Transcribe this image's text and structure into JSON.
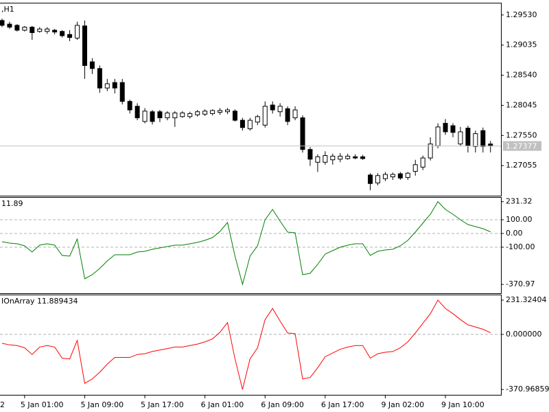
{
  "chart_data": [
    {
      "type": "candlestick",
      "title": ",H1",
      "clipped_x_label": "2",
      "categories": [
        null,
        null,
        null,
        "5 Jan 01:00",
        null,
        null,
        null,
        null,
        null,
        null,
        null,
        "5 Jan 09:00",
        null,
        null,
        null,
        null,
        null,
        null,
        null,
        "5 Jan 17:00",
        null,
        null,
        null,
        null,
        null,
        null,
        null,
        "6 Jan 01:00",
        null,
        null,
        null,
        null,
        null,
        null,
        null,
        "6 Jan 09:00",
        null,
        null,
        null,
        null,
        null,
        null,
        null,
        "6 Jan 17:00",
        null,
        null,
        null,
        null,
        null,
        null,
        null,
        "9 Jan 02:00",
        null,
        null,
        null,
        null,
        null,
        null,
        null,
        "9 Jan 10:00",
        null,
        null,
        null,
        null,
        null,
        null
      ],
      "ohlc": [
        [
          1.2944,
          1.2947,
          1.2933,
          1.2936
        ],
        [
          1.2938,
          1.2942,
          1.293,
          1.2933
        ],
        [
          1.2936,
          1.2938,
          1.2926,
          1.2928
        ],
        [
          1.2928,
          1.2935,
          1.2926,
          1.2933
        ],
        [
          1.2933,
          1.2935,
          1.2912,
          1.2924
        ],
        [
          1.2926,
          1.2933,
          1.2924,
          1.293
        ],
        [
          1.2926,
          1.2933,
          1.2922,
          1.293
        ],
        [
          1.2928,
          1.293,
          1.2921,
          1.2925
        ],
        [
          1.2926,
          1.2928,
          1.2916,
          1.2919
        ],
        [
          1.2921,
          1.2928,
          1.291,
          1.2916
        ],
        [
          1.2915,
          1.2942,
          1.2912,
          1.2936
        ],
        [
          1.2935,
          1.2944,
          1.2848,
          1.287
        ],
        [
          1.2876,
          1.2882,
          1.2856,
          1.2865
        ],
        [
          1.2865,
          1.287,
          1.2825,
          1.2833
        ],
        [
          1.2833,
          1.2848,
          1.2828,
          1.284
        ],
        [
          1.2842,
          1.2848,
          1.2824,
          1.2833
        ],
        [
          1.2842,
          1.2848,
          1.2806,
          1.2811
        ],
        [
          1.2811,
          1.2814,
          1.2791,
          1.2797
        ],
        [
          1.2803,
          1.2808,
          1.278,
          1.2784
        ],
        [
          1.2778,
          1.28,
          1.2775,
          1.2795
        ],
        [
          1.2794,
          1.2797,
          1.2773,
          1.2778
        ],
        [
          1.2794,
          1.2797,
          1.2777,
          1.2784
        ],
        [
          1.2784,
          1.2795,
          1.278,
          1.2792
        ],
        [
          1.2784,
          1.2795,
          1.2769,
          1.2792
        ],
        [
          1.2786,
          1.2795,
          1.2784,
          1.2792
        ],
        [
          1.2786,
          1.2794,
          1.2783,
          1.2791
        ],
        [
          1.2789,
          1.2797,
          1.2786,
          1.2794
        ],
        [
          1.279,
          1.2798,
          1.2787,
          1.2795
        ],
        [
          1.2791,
          1.2798,
          1.2788,
          1.2796
        ],
        [
          1.2793,
          1.28,
          1.2789,
          1.2796
        ],
        [
          1.2794,
          1.28,
          1.279,
          1.2797
        ],
        [
          1.2795,
          1.2798,
          1.2778,
          1.278
        ],
        [
          1.278,
          1.2784,
          1.2763,
          1.2768
        ],
        [
          1.2766,
          1.2784,
          1.2763,
          1.278
        ],
        [
          1.2777,
          1.2789,
          1.2772,
          1.2786
        ],
        [
          1.2772,
          1.2811,
          1.2768,
          1.2803
        ],
        [
          1.2805,
          1.2811,
          1.2791,
          1.2797
        ],
        [
          1.2794,
          1.2808,
          1.2786,
          1.2803
        ],
        [
          1.2799,
          1.2803,
          1.2772,
          1.2778
        ],
        [
          1.2784,
          1.2803,
          1.278,
          1.2797
        ],
        [
          1.2784,
          1.2788,
          1.2727,
          1.2732
        ],
        [
          1.2732,
          1.2736,
          1.2705,
          1.2716
        ],
        [
          1.2711,
          1.2724,
          1.2695,
          1.272
        ],
        [
          1.2711,
          1.2729,
          1.2707,
          1.2722
        ],
        [
          1.2715,
          1.2725,
          1.2707,
          1.2721
        ],
        [
          1.2716,
          1.2726,
          1.2711,
          1.2721
        ],
        [
          1.2717,
          1.2725,
          1.2715,
          1.2721
        ],
        [
          1.272,
          1.2724,
          1.2716,
          1.2718
        ],
        [
          1.272,
          1.2723,
          1.2715,
          1.2717
        ],
        [
          1.269,
          1.2693,
          1.2665,
          1.2676
        ],
        [
          1.2677,
          1.2693,
          1.2673,
          1.2689
        ],
        [
          1.2684,
          1.2695,
          1.268,
          1.2691
        ],
        [
          1.2687,
          1.2694,
          1.2682,
          1.2691
        ],
        [
          1.2692,
          1.2695,
          1.2682,
          1.2685
        ],
        [
          1.2686,
          1.2695,
          1.2682,
          1.2693
        ],
        [
          1.2696,
          1.2715,
          1.2689,
          1.2707
        ],
        [
          1.2703,
          1.2722,
          1.2698,
          1.2718
        ],
        [
          1.2718,
          1.2752,
          1.2714,
          1.2741
        ],
        [
          1.2738,
          1.2775,
          1.2734,
          1.2769
        ],
        [
          1.2775,
          1.2782,
          1.2756,
          1.2761
        ],
        [
          1.2771,
          1.2775,
          1.2752,
          1.276
        ],
        [
          1.2741,
          1.2769,
          1.2738,
          1.2761
        ],
        [
          1.2767,
          1.2771,
          1.2727,
          1.2738
        ],
        [
          1.2737,
          1.2763,
          1.2727,
          1.2758
        ],
        [
          1.2763,
          1.2768,
          1.2727,
          1.2737
        ],
        [
          1.2741,
          1.2746,
          1.2727,
          1.27377
        ]
      ],
      "ylim": [
        1.2656,
        1.2972
      ],
      "yticks": [
        {
          "value": 1.2953,
          "label": "1.29530"
        },
        1.29035,
        {
          "value": 1.2854,
          "label": "1.28540"
        },
        1.28045,
        {
          "value": 1.2755,
          "label": "1.27550"
        },
        1.27055
      ],
      "current_price": 1.27377,
      "current_price_color": "#c0c0c0"
    },
    {
      "type": "line",
      "title": "11.89",
      "color": "#008000",
      "values": [
        -60,
        -70,
        -75,
        -90,
        -135,
        -85,
        -75,
        -85,
        -160,
        -165,
        -40,
        -330,
        -300,
        -255,
        -200,
        -155,
        -155,
        -155,
        -135,
        -130,
        -115,
        -105,
        -95,
        -85,
        -85,
        -75,
        -65,
        -50,
        -30,
        15,
        80,
        -165,
        -370.97,
        -165,
        -90,
        100,
        175,
        90,
        10,
        5,
        -300,
        -290,
        -225,
        -150,
        -125,
        -100,
        -85,
        -75,
        -75,
        -160,
        -130,
        -120,
        -115,
        -90,
        -50,
        10,
        75,
        140,
        231.32,
        175,
        140,
        100,
        65,
        50,
        35,
        11.89
      ],
      "ylim": [
        -435,
        260
      ],
      "yticks": [
        231.32,
        {
          "value": 100,
          "label": "100.00"
        },
        {
          "value": 0,
          "label": "0.00"
        },
        {
          "value": -100,
          "label": "-100.00"
        },
        -370.97
      ],
      "gridlines": [
        100,
        0,
        -100
      ]
    },
    {
      "type": "line",
      "title": "IOnArray 11.889434",
      "color": "#ff0000",
      "values": [
        -60,
        -70,
        -75,
        -90,
        -135,
        -85,
        -75,
        -85,
        -160,
        -165,
        -40,
        -330,
        -300,
        -255,
        -200,
        -155,
        -155,
        -155,
        -135,
        -130,
        -115,
        -105,
        -95,
        -85,
        -85,
        -75,
        -65,
        -50,
        -30,
        15,
        80,
        -165,
        -370.96859,
        -165,
        -90,
        100,
        175,
        90,
        10,
        5,
        -300,
        -290,
        -225,
        -150,
        -125,
        -100,
        -85,
        -75,
        -75,
        -160,
        -130,
        -120,
        -115,
        -90,
        -50,
        10,
        75,
        140,
        231.32404,
        175,
        140,
        100,
        65,
        50,
        35,
        11.889434
      ],
      "ylim": [
        -407,
        264
      ],
      "yticks": [
        231.32404,
        {
          "value": 0,
          "label": "0.000000"
        },
        -370.96859
      ],
      "gridlines": [
        0
      ]
    }
  ]
}
